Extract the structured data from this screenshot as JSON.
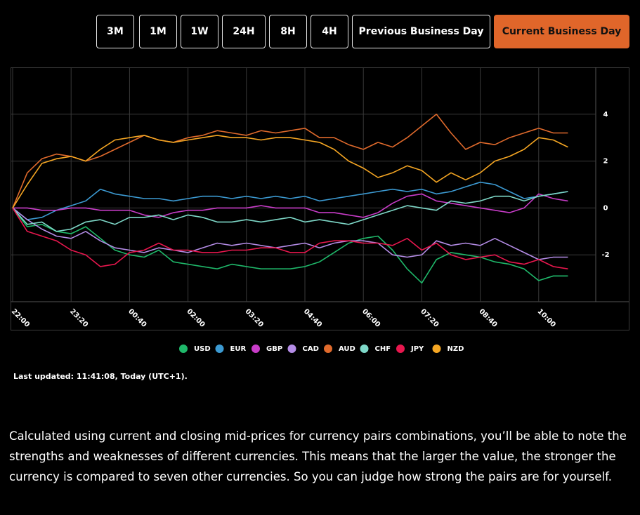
{
  "buttons": [
    "3M",
    "1M",
    "1W",
    "24H",
    "8H",
    "4H",
    "Previous Business Day",
    "Current Business Day"
  ],
  "chart_data": {
    "type": "line",
    "categories": [
      "22:00",
      null,
      null,
      null,
      "23:20",
      null,
      null,
      null,
      "00:40",
      null,
      null,
      null,
      "02:00",
      null,
      null,
      null,
      "03:20",
      null,
      null,
      null,
      "04:40",
      null,
      null,
      null,
      "06:00",
      null,
      null,
      null,
      "07:20",
      null,
      null,
      null,
      "08:40",
      null,
      null,
      null,
      "10:00",
      null,
      null
    ],
    "ylim": [
      -4,
      6
    ],
    "yticks": [
      -2,
      0,
      2,
      4
    ],
    "grid": true,
    "series": [
      {
        "name": "USD",
        "color": "#1fb86a",
        "values": [
          0,
          -0.8,
          -0.7,
          -1.0,
          -1.1,
          -0.8,
          -1.3,
          -1.8,
          -2.0,
          -2.1,
          -1.8,
          -2.3,
          -2.4,
          -2.5,
          -2.6,
          -2.4,
          -2.5,
          -2.6,
          -2.6,
          -2.6,
          -2.5,
          -2.3,
          -1.9,
          -1.5,
          -1.3,
          -1.2,
          -1.8,
          -2.6,
          -3.2,
          -2.2,
          -1.9,
          -2.0,
          -2.1,
          -2.3,
          -2.4,
          -2.6,
          -3.1,
          -2.9,
          -2.9
        ]
      },
      {
        "name": "EUR",
        "color": "#3c9ad2",
        "values": [
          0,
          -0.5,
          -0.4,
          -0.1,
          0.1,
          0.3,
          0.8,
          0.6,
          0.5,
          0.4,
          0.4,
          0.3,
          0.4,
          0.5,
          0.5,
          0.4,
          0.5,
          0.4,
          0.5,
          0.4,
          0.5,
          0.3,
          0.4,
          0.5,
          0.6,
          0.7,
          0.8,
          0.7,
          0.8,
          0.6,
          0.7,
          0.9,
          1.1,
          1.0,
          0.7,
          0.4,
          0.5,
          0.6,
          0.7
        ]
      },
      {
        "name": "GBP",
        "color": "#c83cc8",
        "values": [
          0,
          0,
          -0.1,
          -0.1,
          0,
          0,
          -0.1,
          -0.1,
          -0.1,
          -0.3,
          -0.4,
          -0.2,
          -0.1,
          -0.1,
          0,
          0,
          0,
          0.1,
          0,
          0,
          0,
          -0.2,
          -0.2,
          -0.3,
          -0.4,
          -0.2,
          0.2,
          0.5,
          0.6,
          0.3,
          0.2,
          0.1,
          0,
          -0.1,
          -0.2,
          0,
          0.6,
          0.4,
          0.3
        ]
      },
      {
        "name": "CAD",
        "color": "#b48ce6",
        "values": [
          0,
          -0.5,
          -0.9,
          -1.2,
          -1.3,
          -1.0,
          -1.4,
          -1.7,
          -1.8,
          -1.9,
          -1.7,
          -1.8,
          -1.9,
          -1.7,
          -1.5,
          -1.6,
          -1.5,
          -1.6,
          -1.7,
          -1.6,
          -1.5,
          -1.7,
          -1.5,
          -1.4,
          -1.4,
          -1.5,
          -2.0,
          -2.1,
          -2.0,
          -1.4,
          -1.6,
          -1.5,
          -1.6,
          -1.3,
          -1.6,
          -1.9,
          -2.2,
          -2.1,
          -2.1
        ]
      },
      {
        "name": "AUD",
        "color": "#e06a2c",
        "values": [
          0,
          1.5,
          2.1,
          2.3,
          2.2,
          2.0,
          2.2,
          2.5,
          2.8,
          3.1,
          2.9,
          2.8,
          3.0,
          3.1,
          3.3,
          3.2,
          3.1,
          3.3,
          3.2,
          3.3,
          3.4,
          3.0,
          3.0,
          2.7,
          2.5,
          2.8,
          2.6,
          3.0,
          3.5,
          4.0,
          3.2,
          2.5,
          2.8,
          2.7,
          3.0,
          3.2,
          3.4,
          3.2,
          3.2
        ]
      },
      {
        "name": "CHF",
        "color": "#7ed8c8",
        "values": [
          0,
          -0.7,
          -0.6,
          -1.0,
          -0.9,
          -0.6,
          -0.5,
          -0.7,
          -0.4,
          -0.4,
          -0.3,
          -0.5,
          -0.3,
          -0.4,
          -0.6,
          -0.6,
          -0.5,
          -0.6,
          -0.5,
          -0.4,
          -0.6,
          -0.5,
          -0.6,
          -0.7,
          -0.5,
          -0.3,
          -0.1,
          0.1,
          0,
          -0.1,
          0.3,
          0.2,
          0.3,
          0.5,
          0.5,
          0.3,
          0.5,
          0.6,
          0.7
        ]
      },
      {
        "name": "JPY",
        "color": "#e8174e",
        "values": [
          0,
          -1.0,
          -1.2,
          -1.4,
          -1.8,
          -2.0,
          -2.5,
          -2.4,
          -1.9,
          -1.8,
          -1.5,
          -1.8,
          -1.8,
          -1.9,
          -1.9,
          -1.8,
          -1.8,
          -1.7,
          -1.7,
          -1.9,
          -1.9,
          -1.5,
          -1.4,
          -1.4,
          -1.5,
          -1.5,
          -1.6,
          -1.3,
          -1.8,
          -1.5,
          -2.0,
          -2.2,
          -2.1,
          -2.0,
          -2.3,
          -2.4,
          -2.2,
          -2.5,
          -2.6
        ]
      },
      {
        "name": "NZD",
        "color": "#f5a623",
        "values": [
          0,
          1.0,
          1.9,
          2.1,
          2.2,
          2.0,
          2.5,
          2.9,
          3.0,
          3.1,
          2.9,
          2.8,
          2.9,
          3.0,
          3.1,
          3.0,
          3.0,
          2.9,
          3.0,
          3.0,
          2.9,
          2.8,
          2.5,
          2.0,
          1.7,
          1.3,
          1.5,
          1.8,
          1.6,
          1.1,
          1.5,
          1.2,
          1.5,
          2.0,
          2.2,
          2.5,
          3.0,
          2.9,
          2.6
        ]
      }
    ]
  },
  "last_updated": "Last updated: 11:41:08, Today (UTC+1).",
  "description": "Calculated using current and closing mid-prices for currency pairs combinations, you’ll be able to note the strengths and weaknesses of different currencies. This means that the larger the value, the stronger the currency is compared to seven other currencies. So you can judge how strong the pairs are for yourself."
}
